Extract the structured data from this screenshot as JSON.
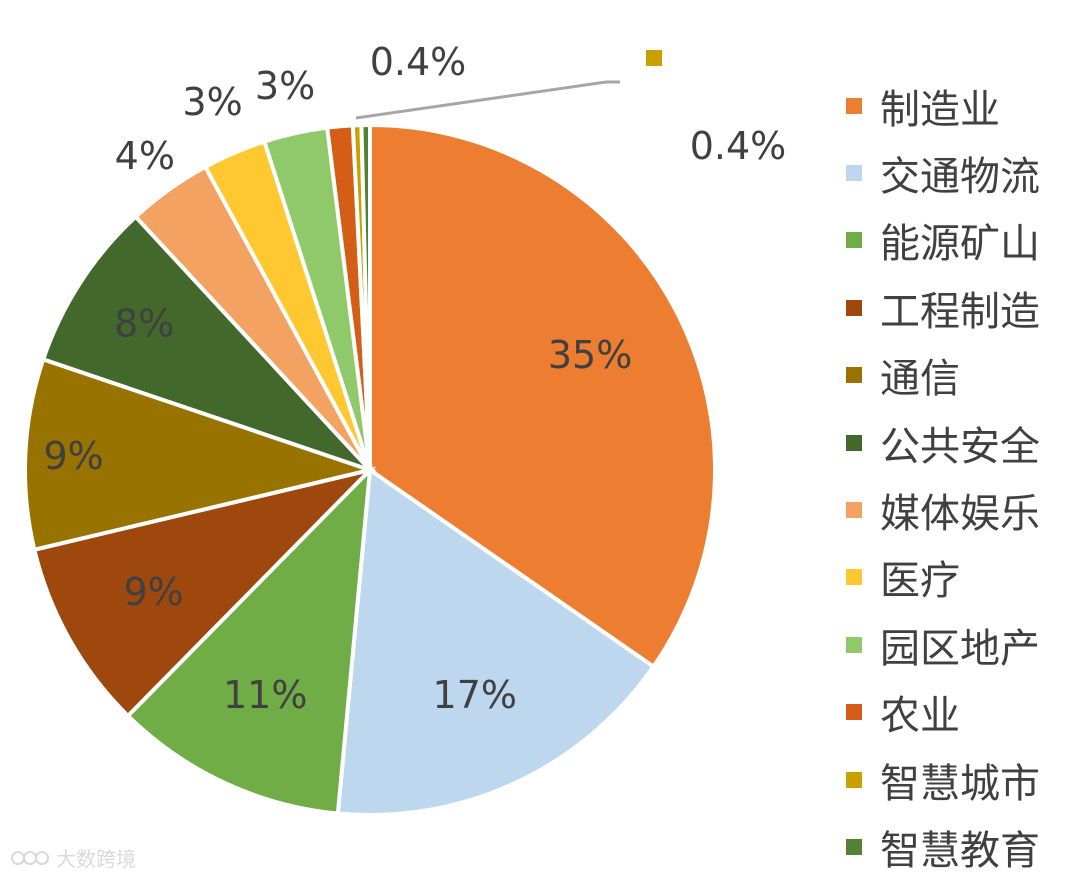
{
  "chart_data": {
    "type": "pie",
    "slices": [
      {
        "label": "制造业",
        "value": 35,
        "display": "35%",
        "color": "#ED7D31"
      },
      {
        "label": "交通物流",
        "value": 17,
        "display": "17%",
        "color": "#BDD7EE"
      },
      {
        "label": "能源矿山",
        "value": 11,
        "display": "11%",
        "color": "#70AD47"
      },
      {
        "label": "工程制造",
        "value": 9,
        "display": "9%",
        "color": "#9E480E"
      },
      {
        "label": "通信",
        "value": 9,
        "display": "9%",
        "color": "#997300"
      },
      {
        "label": "公共安全",
        "value": 8,
        "display": "8%",
        "color": "#43682B"
      },
      {
        "label": "媒体娱乐",
        "value": 4,
        "display": "4%",
        "color": "#F4A261"
      },
      {
        "label": "医疗",
        "value": 3,
        "display": "3%",
        "color": "#FFC831"
      },
      {
        "label": "园区地产",
        "value": 3,
        "display": "3%",
        "color": "#8FC96A"
      },
      {
        "label": "农业",
        "value": 1.2,
        "display": "",
        "color": "#D55E16"
      },
      {
        "label": "智慧城市",
        "value": 0.4,
        "display": "0.4%",
        "color": "#C9A000"
      },
      {
        "label": "智慧教育",
        "value": 0.4,
        "display": "0.4%",
        "color": "#548235"
      }
    ],
    "legend_position": "right"
  },
  "watermark": {
    "text": "大数跨境"
  }
}
